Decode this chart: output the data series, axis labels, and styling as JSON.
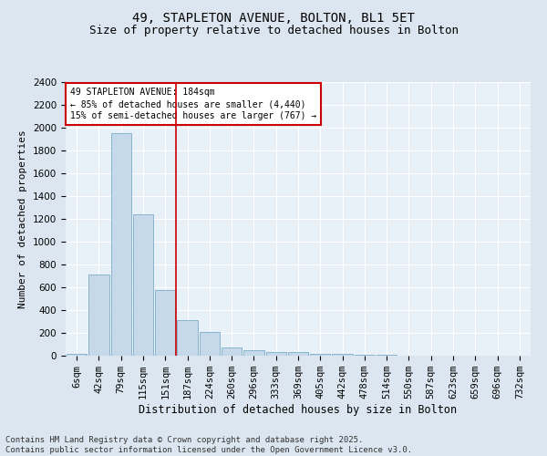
{
  "title1": "49, STAPLETON AVENUE, BOLTON, BL1 5ET",
  "title2": "Size of property relative to detached houses in Bolton",
  "xlabel": "Distribution of detached houses by size in Bolton",
  "ylabel": "Number of detached properties",
  "bin_labels": [
    "6sqm",
    "42sqm",
    "79sqm",
    "115sqm",
    "151sqm",
    "187sqm",
    "224sqm",
    "260sqm",
    "296sqm",
    "333sqm",
    "369sqm",
    "405sqm",
    "442sqm",
    "478sqm",
    "514sqm",
    "550sqm",
    "587sqm",
    "623sqm",
    "659sqm",
    "696sqm",
    "732sqm"
  ],
  "values": [
    15,
    710,
    1950,
    1240,
    580,
    310,
    205,
    75,
    45,
    35,
    30,
    20,
    20,
    10,
    10,
    0,
    0,
    0,
    0,
    0,
    0
  ],
  "bar_color": "#c5d9ea",
  "bar_edge_color": "#7aaec8",
  "vline_color": "#cc0000",
  "vline_index": 4.5,
  "annotation_text": "49 STAPLETON AVENUE: 184sqm\n← 85% of detached houses are smaller (4,440)\n15% of semi-detached houses are larger (767) →",
  "annotation_box_color": "#cc0000",
  "ylim": [
    0,
    2400
  ],
  "yticks": [
    0,
    200,
    400,
    600,
    800,
    1000,
    1200,
    1400,
    1600,
    1800,
    2000,
    2200,
    2400
  ],
  "bg_color": "#dce6f0",
  "plot_bg_color": "#e8f0f8",
  "grid_color": "#ffffff",
  "footer": "Contains HM Land Registry data © Crown copyright and database right 2025.\nContains public sector information licensed under the Open Government Licence v3.0.",
  "title1_fontsize": 10,
  "title2_fontsize": 9,
  "xlabel_fontsize": 8.5,
  "ylabel_fontsize": 8,
  "tick_fontsize": 7.5,
  "footer_fontsize": 6.5
}
